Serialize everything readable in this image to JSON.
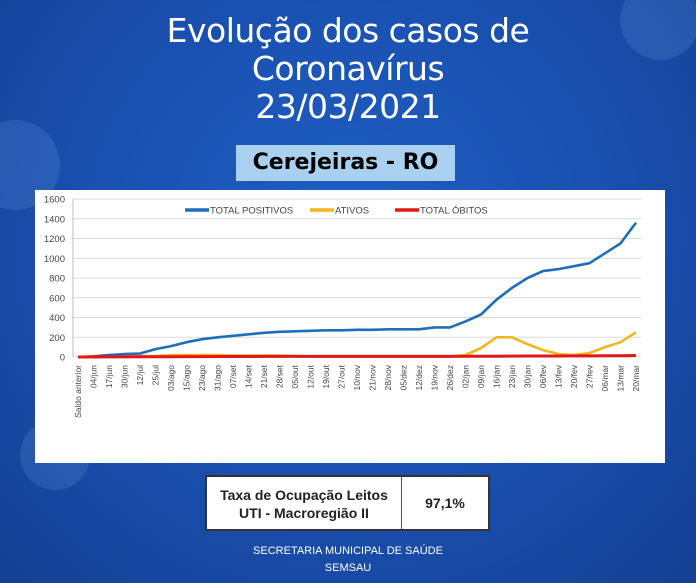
{
  "header": {
    "title_lines": [
      "Evolução dos casos de",
      "Coronavírus",
      "23/03/2021"
    ],
    "location": "Cerejeiras - RO"
  },
  "occupancy": {
    "label_lines": [
      "Taxa de Ocupação Leitos",
      "UTI - Macroregião II"
    ],
    "value": "97,1%"
  },
  "footer": {
    "line1": "SECRETARIA MUNICIPAL DE SAÚDE",
    "line2": "SEMSAU"
  },
  "chart_data": {
    "type": "line",
    "title": "",
    "xlabel": "",
    "ylabel": "",
    "ylim": [
      0,
      1600
    ],
    "yticks": [
      0,
      200,
      400,
      600,
      800,
      1000,
      1200,
      1400,
      1600
    ],
    "grid": true,
    "legend_position": "top",
    "categories": [
      "Saldo anterior",
      "04/jun",
      "17/jun",
      "30/jun",
      "12/jul",
      "25/jul",
      "03/ago",
      "15/ago",
      "23/ago",
      "31/ago",
      "07/set",
      "14/set",
      "21/set",
      "28/set",
      "05/out",
      "12/out",
      "19/out",
      "27/out",
      "10/nov",
      "21/nov",
      "28/nov",
      "05/dez",
      "12/dez",
      "19/nov",
      "26/dez",
      "02/jan",
      "09/jan",
      "16/jan",
      "23/jan",
      "30/jan",
      "06/fev",
      "13/fev",
      "20/fev",
      "27/fev",
      "06/mar",
      "13/mar",
      "20/mar"
    ],
    "series": [
      {
        "name": "TOTAL POSITIVOS",
        "color": "#1f6fb8",
        "values": [
          0,
          5,
          20,
          30,
          35,
          80,
          110,
          150,
          180,
          200,
          215,
          230,
          245,
          255,
          260,
          265,
          270,
          270,
          275,
          275,
          280,
          280,
          280,
          300,
          300,
          360,
          430,
          580,
          700,
          800,
          870,
          890,
          920,
          950,
          1050,
          1150,
          1360
        ]
      },
      {
        "name": "ATIVOS",
        "color": "#f2b61f",
        "values": [
          0,
          10,
          20,
          15,
          10,
          10,
          20,
          20,
          20,
          20,
          15,
          15,
          15,
          15,
          10,
          5,
          5,
          5,
          5,
          5,
          5,
          5,
          5,
          5,
          5,
          20,
          90,
          200,
          200,
          130,
          70,
          30,
          20,
          40,
          100,
          150,
          250
        ]
      },
      {
        "name": "TOTAL ÓBITOS",
        "color": "#e01818",
        "values": [
          0,
          0,
          1,
          1,
          2,
          3,
          3,
          4,
          4,
          5,
          5,
          5,
          6,
          6,
          6,
          6,
          6,
          6,
          6,
          6,
          6,
          6,
          6,
          6,
          6,
          7,
          7,
          8,
          9,
          10,
          10,
          10,
          11,
          11,
          12,
          13,
          15
        ]
      }
    ]
  }
}
